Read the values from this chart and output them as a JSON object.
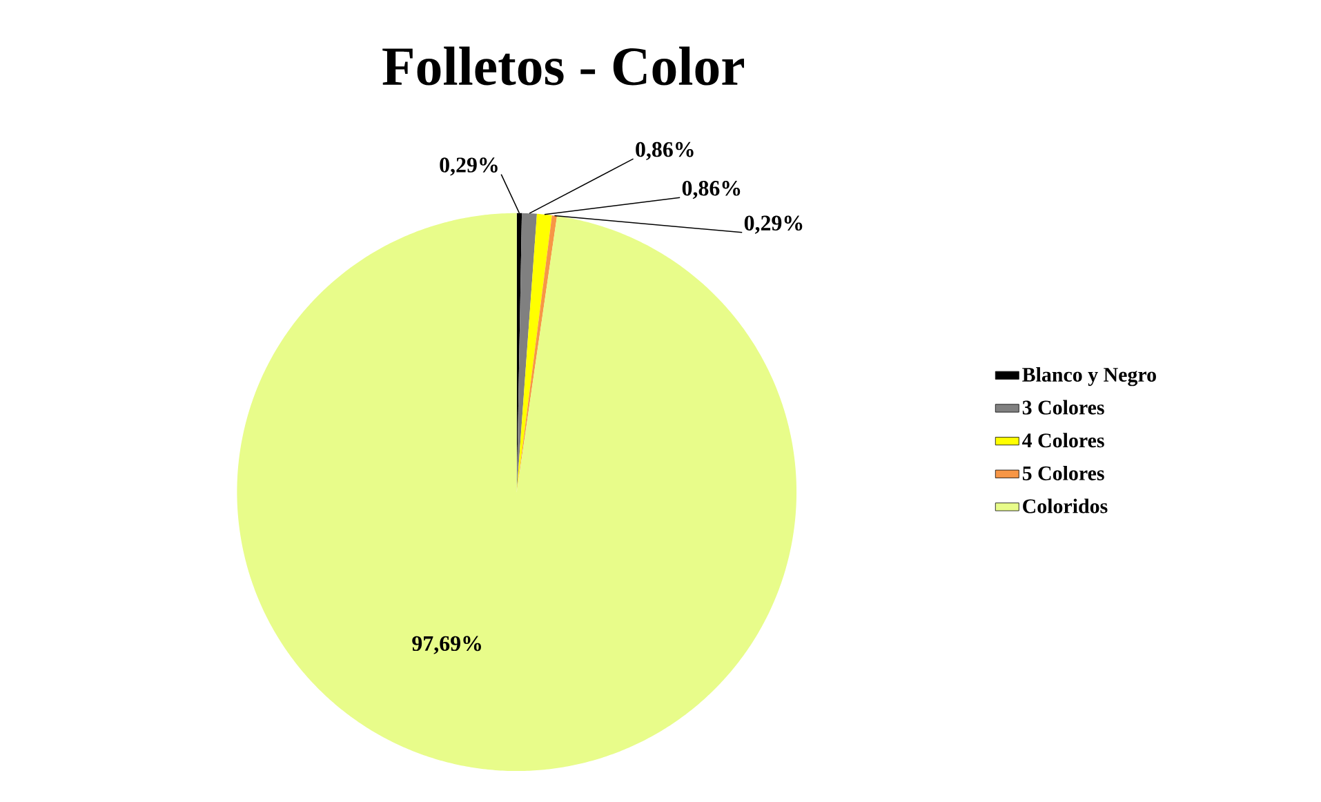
{
  "chart_data": {
    "type": "pie",
    "title": "Folletos - Color",
    "categories": [
      "Blanco y Negro",
      "3 Colores",
      "4 Colores",
      "5 Colores",
      "Coloridos"
    ],
    "values": [
      0.29,
      0.86,
      0.86,
      0.29,
      97.69
    ],
    "colors": [
      "#000000",
      "#808080",
      "#ffff00",
      "#f79646",
      "#e8fc8a"
    ],
    "value_labels": [
      "0,29%",
      "0,86%",
      "0,86%",
      "0,29%",
      "97,69%"
    ],
    "legend": "right"
  }
}
